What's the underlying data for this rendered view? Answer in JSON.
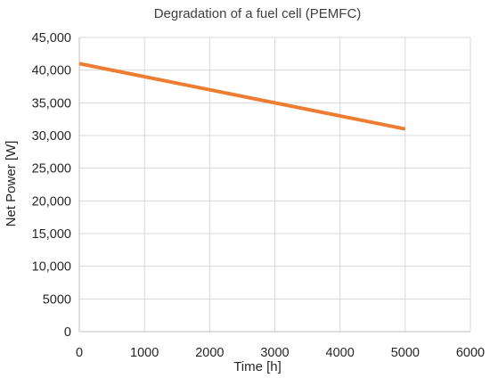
{
  "chart_data": {
    "type": "line",
    "title": "Degradation of a fuel cell (PEMFC)",
    "xlabel": "Time [h]",
    "ylabel": "Net Power [W]",
    "xlim": [
      0,
      6000
    ],
    "ylim": [
      0,
      45000
    ],
    "x_ticks": [
      "0",
      "1000",
      "2000",
      "3000",
      "4000",
      "5000",
      "6000"
    ],
    "y_ticks": [
      "0",
      "5000",
      "10,000",
      "15,000",
      "20,000",
      "25,000",
      "30,000",
      "35,000",
      "40,000",
      "45,000"
    ],
    "grid": true,
    "legend": "none",
    "series": [
      {
        "color": "#ed7d31",
        "points": [
          {
            "x": 0,
            "y": 41000
          },
          {
            "x": 5000,
            "y": 31000
          }
        ]
      }
    ]
  }
}
